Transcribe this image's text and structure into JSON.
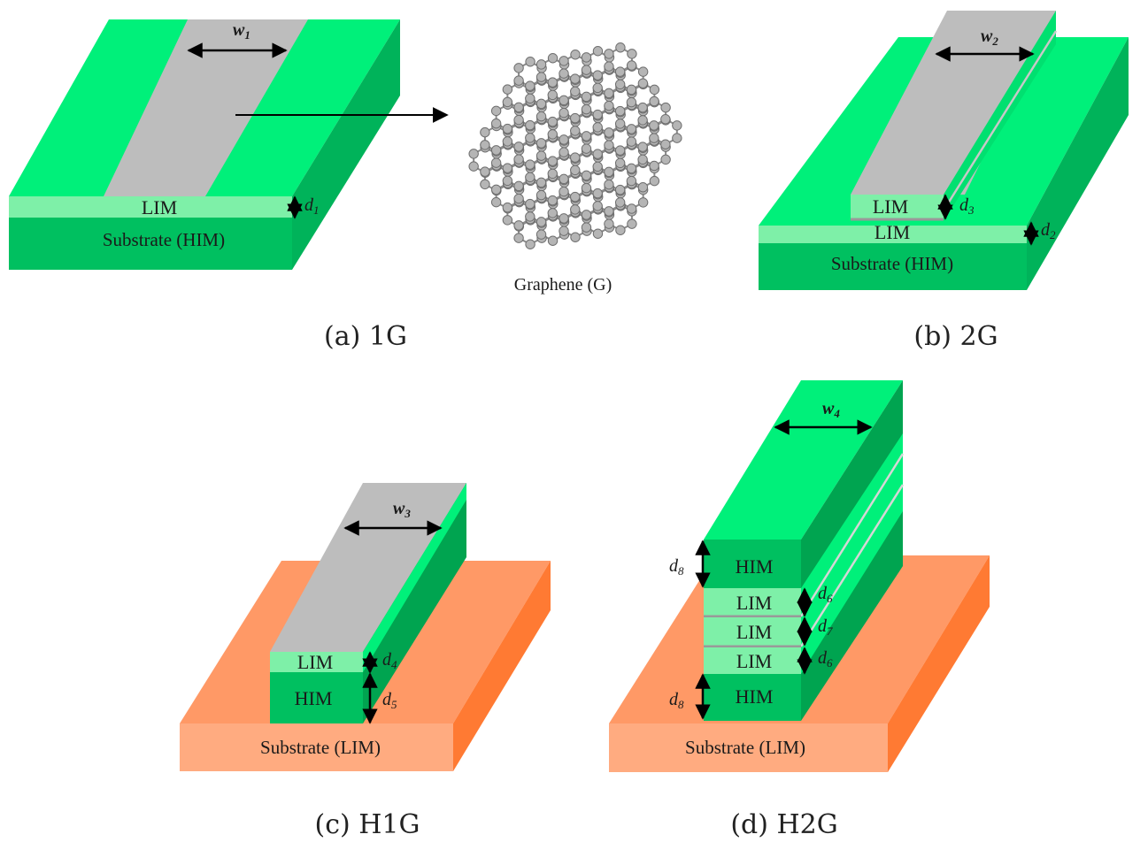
{
  "panel_a": {
    "caption": "(a) 1G",
    "width_label": "w",
    "width_sub": "1",
    "layer_lim": "LIM",
    "thickness_label": "d",
    "thickness_sub": "1",
    "substrate": "Substrate (HIM)"
  },
  "graphene": {
    "label": "Graphene (G)"
  },
  "panel_b": {
    "caption": "(b) 2G",
    "width_label": "w",
    "width_sub": "2",
    "layer_lim_top": "LIM",
    "layer_lim_bottom": "LIM",
    "d_top_label": "d",
    "d_top_sub": "3",
    "d_bottom_label": "d",
    "d_bottom_sub": "2",
    "substrate": "Substrate (HIM)"
  },
  "panel_c": {
    "caption": "(c) H1G",
    "width_label": "w",
    "width_sub": "3",
    "layer_lim": "LIM",
    "layer_him": "HIM",
    "d_lim_label": "d",
    "d_lim_sub": "4",
    "d_him_label": "d",
    "d_him_sub": "5",
    "substrate": "Substrate (LIM)"
  },
  "panel_d": {
    "caption": "(d) H2G",
    "width_label": "w",
    "width_sub": "4",
    "layer_him_top": "HIM",
    "layer_lim_1": "LIM",
    "layer_lim_2": "LIM",
    "layer_lim_3": "LIM",
    "layer_him_bottom": "HIM",
    "d_him_top_label": "d",
    "d_him_top_sub": "8",
    "d_lim1_label": "d",
    "d_lim1_sub": "6",
    "d_lim2_label": "d",
    "d_lim2_sub": "7",
    "d_lim3_label": "d",
    "d_lim3_sub": "6",
    "d_him_bottom_label": "d",
    "d_him_bottom_sub": "8",
    "substrate": "Substrate (LIM)"
  },
  "colors": {
    "him_top": "#00f07a",
    "him_front": "#00c060",
    "him_side": "#00a450",
    "lim": "#7ef0a8",
    "graphene_strip": "#bdbdbd",
    "graphene_line": "#9a9a9a",
    "substrate_lim_top": "#ff9966",
    "substrate_lim_front": "#ffab80",
    "substrate_lim_side": "#ff7a33"
  }
}
